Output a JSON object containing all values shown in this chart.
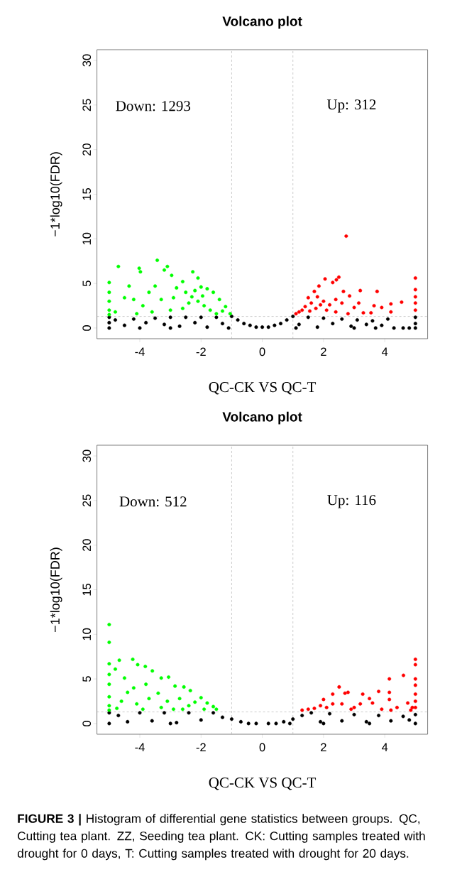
{
  "chart_data": [
    {
      "type": "scatter",
      "title": "Volcano plot",
      "xlabel": "QC-CK VS QC-T",
      "ylabel": "−1*log10(FDR)",
      "xlim": [
        -5.4,
        5.4
      ],
      "ylim": [
        -1.2,
        31.2
      ],
      "xticks": [
        -4,
        -2,
        0,
        2,
        4
      ],
      "yticks": [
        0,
        5,
        10,
        15,
        20,
        25,
        30
      ],
      "ref_lines": [
        {
          "axis": "x",
          "value": -1,
          "color": "#aaaaaa",
          "line_style": "dashed"
        },
        {
          "axis": "x",
          "value": 1,
          "color": "#aaaaaa",
          "line_style": "dashed"
        },
        {
          "axis": "y",
          "value": 1.3,
          "color": "#aaaaaa",
          "line_style": "dashed"
        }
      ],
      "annotations": [
        "Down: 1293",
        "Up: 312"
      ],
      "series": [
        {
          "color": "#000000",
          "x": [
            -5,
            -5,
            -5,
            -4.8,
            -4.5,
            -4.2,
            -4,
            -3.8,
            -3.5,
            -3.2,
            -3,
            -2.7,
            -2.5,
            -2.2,
            -2,
            -1.8,
            -1.5,
            -1.3,
            -1.0,
            -0.8,
            -0.6,
            -0.4,
            -0.2,
            0,
            0.2,
            0.4,
            0.6,
            0.8,
            1.0,
            1.2,
            1.5,
            1.8,
            2,
            2.3,
            2.6,
            2.9,
            3.1,
            3.4,
            3.6,
            3.7,
            3.9,
            4.1,
            4.3,
            4.6,
            4.8,
            5,
            5,
            5,
            -1.1,
            1.1,
            -3.0,
            3.0
          ],
          "values": [
            1.2,
            0.6,
            0,
            0.9,
            0.3,
            1.0,
            0,
            0.6,
            1.1,
            0.4,
            1.2,
            0.2,
            1.2,
            0.6,
            1.2,
            0.1,
            1.2,
            0.5,
            1.3,
            0.9,
            0.5,
            0.3,
            0.1,
            0.1,
            0.1,
            0.3,
            0.5,
            0.9,
            1.3,
            0.4,
            1.2,
            0.1,
            1.1,
            0.5,
            1.0,
            0.2,
            0.9,
            0.4,
            0.8,
            0,
            0.3,
            1.0,
            0,
            0,
            0,
            1.2,
            0.5,
            0,
            0,
            0,
            0,
            0
          ]
        },
        {
          "color": "#00ff00",
          "x": [
            -5,
            -5,
            -5,
            -5,
            -5,
            -4.7,
            -4.35,
            -4.02,
            -3.98,
            -3.43,
            -3.1,
            -3.2,
            -2.96,
            -2.6,
            -2.27,
            -2.1,
            -2.0,
            -1.8,
            -1.6,
            -1.4,
            -1.2,
            -1.05,
            -3.7,
            -3.5,
            -4.5,
            -4.2,
            -3.9,
            -3.3,
            -2.8,
            -2.5,
            -2.3,
            -2.1,
            -1.9,
            -1.7,
            -1.5,
            -2.6,
            -3.0,
            -3.6,
            -4.1,
            -4.8,
            -2.2,
            -1.95,
            -2.4,
            -2.9,
            -1.3
          ],
          "values": [
            5.1,
            4.0,
            3.0,
            2.0,
            1.5,
            6.9,
            4.7,
            6.7,
            6.3,
            7.6,
            6.9,
            6.5,
            5.9,
            5.2,
            6.3,
            5.6,
            4.6,
            4.4,
            4.0,
            3.2,
            2.4,
            1.6,
            4.0,
            4.7,
            3.4,
            3.2,
            2.5,
            3.2,
            4.5,
            4.0,
            3.5,
            3.0,
            2.5,
            2.0,
            1.6,
            2.2,
            2.0,
            1.8,
            1.6,
            1.8,
            4.2,
            3.6,
            2.8,
            3.4,
            1.9
          ]
        },
        {
          "color": "#ff0000",
          "x": [
            2.74,
            2.5,
            2.42,
            2.05,
            1.85,
            1.7,
            2.3,
            2.65,
            2.85,
            3.2,
            3.75,
            5,
            5,
            5,
            5,
            5,
            4.55,
            4.2,
            4.2,
            3.9,
            3.65,
            3.55,
            3.0,
            3.15,
            2.6,
            2.4,
            2.2,
            2.0,
            1.8,
            1.6,
            1.5,
            1.4,
            1.3,
            1.2,
            1.1,
            1.75,
            2.1,
            2.4,
            2.8,
            3.3,
            1.55,
            1.9
          ],
          "values": [
            10.3,
            5.7,
            5.4,
            5.5,
            4.7,
            4.1,
            5.1,
            4.1,
            3.6,
            4.2,
            4.1,
            5.6,
            4.3,
            3.5,
            2.8,
            2.0,
            2.9,
            2.7,
            1.8,
            2.3,
            2.5,
            1.7,
            2.3,
            2.8,
            2.8,
            3.2,
            2.6,
            3.0,
            3.5,
            2.8,
            3.4,
            2.4,
            2.0,
            1.8,
            1.6,
            2.2,
            2.0,
            1.8,
            1.6,
            1.7,
            1.9,
            2.6
          ]
        }
      ]
    },
    {
      "type": "scatter",
      "title": "Volcano plot",
      "xlabel": "QC-CK VS QC-T",
      "ylabel": "−1*log10(FDR)",
      "xlim": [
        -5.4,
        5.4
      ],
      "ylim": [
        -1.2,
        31.2
      ],
      "xticks": [
        -4,
        -2,
        0,
        2,
        4
      ],
      "yticks": [
        0,
        5,
        10,
        15,
        20,
        25,
        30
      ],
      "ref_lines": [
        {
          "axis": "x",
          "value": -1,
          "color": "#aaaaaa",
          "line_style": "dashed"
        },
        {
          "axis": "x",
          "value": 1,
          "color": "#aaaaaa",
          "line_style": "dashed"
        },
        {
          "axis": "y",
          "value": 1.3,
          "color": "#aaaaaa",
          "line_style": "dashed"
        }
      ],
      "annotations": [
        "Down: 512",
        "Up: 116",
        "**FIGURE 3 |** Histogram of differential gene statistics between groups. QC, Cutting tea plant. ZZ, Seeding tea plant. CK: Cutting samples treated with drought for 0 days, T: Cutting samples treated with drought for 20 days."
      ],
      "series": [
        {
          "color": "#000000",
          "x": [
            -5,
            -5,
            -4.7,
            -4.4,
            -4,
            -3.6,
            -3.2,
            -2.8,
            -2.4,
            -2,
            -1.6,
            -1.3,
            -1.0,
            -0.7,
            -0.45,
            -0.2,
            0.2,
            0.45,
            0.7,
            1.0,
            1.3,
            1.6,
            1.9,
            2.2,
            2.6,
            3.0,
            3.4,
            3.8,
            4.2,
            4.6,
            4.8,
            5,
            5,
            -3.0,
            0.9,
            2.0,
            3.5
          ],
          "values": [
            1.2,
            0,
            0.9,
            0.2,
            1.2,
            0.3,
            1.2,
            0.1,
            1.2,
            0.4,
            1.2,
            0.7,
            0.5,
            0.2,
            0,
            0,
            0,
            0,
            0.2,
            0.5,
            0.9,
            1.2,
            0.2,
            1.1,
            0.3,
            1.0,
            0.2,
            0.9,
            0.3,
            0.8,
            0.4,
            1.0,
            0,
            0,
            0,
            0,
            0
          ]
        },
        {
          "color": "#00ff00",
          "x": [
            -5,
            -5,
            -5,
            -5,
            -5,
            -5,
            -5,
            -5,
            -4.8,
            -4.67,
            -4.5,
            -4.2,
            -4.23,
            -4.07,
            -3.82,
            -3.59,
            -3.3,
            -3.06,
            -3.8,
            -4.4,
            -2.85,
            -2.56,
            -2.35,
            -2.0,
            -1.8,
            -1.6,
            -1.5,
            -4.6,
            -4.1,
            -3.7,
            -3.4,
            -3.1,
            -2.7,
            -2.4,
            -2.2,
            -3.9,
            -3.3,
            -2.9,
            -4.75,
            -2.6,
            -1.9
          ],
          "values": [
            11.1,
            9.1,
            6.7,
            5.5,
            4.4,
            3.0,
            2.0,
            1.5,
            6.1,
            7.1,
            5.1,
            4.0,
            7.2,
            6.6,
            6.4,
            5.9,
            5.1,
            5.2,
            4.4,
            3.5,
            4.2,
            4.1,
            3.7,
            2.9,
            2.3,
            1.9,
            1.6,
            2.5,
            2.2,
            2.8,
            3.4,
            2.5,
            2.8,
            2.0,
            2.4,
            1.6,
            1.8,
            1.6,
            1.7,
            1.6,
            1.6
          ]
        },
        {
          "color": "#ff0000",
          "x": [
            5,
            5,
            5,
            5,
            5,
            5,
            5,
            4.61,
            4.15,
            4.15,
            4.15,
            3.8,
            3.28,
            2.51,
            2.3,
            2.7,
            2.8,
            2.0,
            3.5,
            3.6,
            4.4,
            4.75,
            4.9,
            1.5,
            1.7,
            1.9,
            2.1,
            2.3,
            2.6,
            3.0,
            3.2,
            3.9,
            4.2,
            4.85,
            1.3,
            2.9
          ],
          "values": [
            7.2,
            6.6,
            5.0,
            4.3,
            3.3,
            2.5,
            1.8,
            5.4,
            5.0,
            3.5,
            2.7,
            3.6,
            3.3,
            4.1,
            3.3,
            3.4,
            3.5,
            2.7,
            2.8,
            2.3,
            1.8,
            2.3,
            1.8,
            1.6,
            1.7,
            2.0,
            1.8,
            2.2,
            2.2,
            1.8,
            2.2,
            1.6,
            1.5,
            1.5,
            1.5,
            1.6
          ]
        }
      ]
    }
  ]
}
